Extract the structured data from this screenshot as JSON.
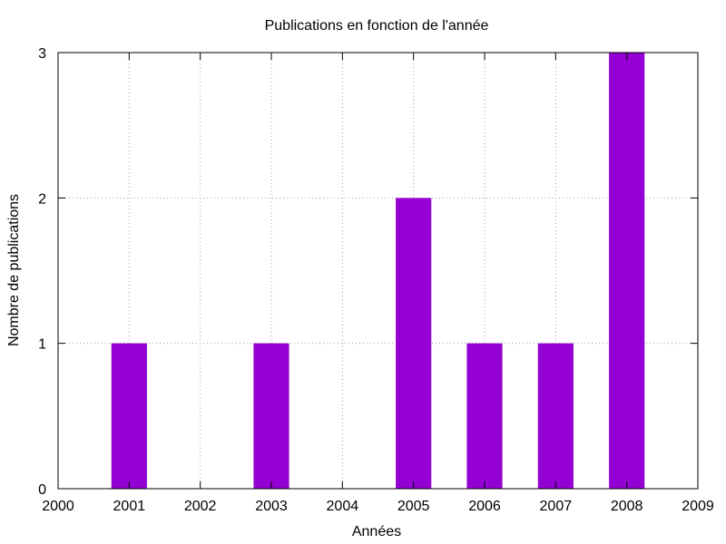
{
  "chart_data": {
    "type": "bar",
    "title": "Publications en fonction de l'année",
    "xlabel": "Années",
    "ylabel": "Nombre de publications",
    "xlim": [
      2000,
      2009
    ],
    "ylim": [
      0,
      3
    ],
    "x_ticks": [
      "2000",
      "2001",
      "2002",
      "2003",
      "2004",
      "2005",
      "2006",
      "2007",
      "2008",
      "2009"
    ],
    "y_ticks": [
      "0",
      "1",
      "2",
      "3"
    ],
    "categories": [
      2001,
      2003,
      2005,
      2006,
      2007,
      2008
    ],
    "values": [
      1,
      1,
      2,
      1,
      1,
      3
    ],
    "bar_color": "#9400d3",
    "grid": true,
    "grid_style": "dotted"
  }
}
